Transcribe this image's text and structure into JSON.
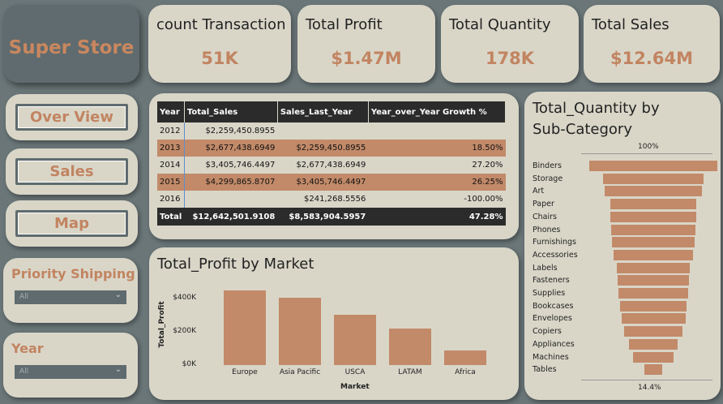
{
  "app": {
    "title": "Super Store"
  },
  "kpis": [
    {
      "label": "count Transaction",
      "value": "51K"
    },
    {
      "label": "Total Profit",
      "value": "$1.47M"
    },
    {
      "label": "Total Quantity",
      "value": "178K"
    },
    {
      "label": "Total Sales",
      "value": "$12.64M"
    }
  ],
  "nav": {
    "overview": "Over View",
    "sales": "Sales",
    "map": "Map"
  },
  "filters": {
    "priority": {
      "label": "Priority Shipping",
      "selected": "All"
    },
    "year": {
      "label": "Year",
      "selected": "All"
    }
  },
  "table": {
    "headers": [
      "Year",
      "Total_Sales",
      "Sales_Last_Year",
      "Year_over_Year Growth %"
    ],
    "rows": [
      [
        "2012",
        "$2,259,450.8955",
        "",
        ""
      ],
      [
        "2013",
        "$2,677,438.6949",
        "$2,259,450.8955",
        "18.50%"
      ],
      [
        "2014",
        "$3,405,746.4497",
        "$2,677,438.6949",
        "27.20%"
      ],
      [
        "2015",
        "$4,299,865.8707",
        "$3,405,746.4497",
        "26.25%"
      ],
      [
        "2016",
        "",
        "$241,268.5556",
        "-100.00%"
      ]
    ],
    "total": [
      "Total",
      "$12,642,501.9108",
      "$8,583,904.5957",
      "47.28%"
    ]
  },
  "colors": {
    "accent": "#c28a69",
    "panel": "#d9d6c8",
    "background": "#6a7678",
    "dark": "#2b2b2b"
  },
  "chart_data": [
    {
      "type": "bar",
      "title": "Total_Profit by Market",
      "xlabel": "Market",
      "ylabel": "Total_Profit",
      "categories": [
        "Europe",
        "Asia Pacific",
        "USCA",
        "LATAM",
        "Africa"
      ],
      "values": [
        450000,
        405000,
        305000,
        222000,
        90000
      ],
      "ylim": [
        0,
        450000
      ],
      "yticks": [
        0,
        200000,
        400000
      ],
      "ytick_labels": [
        "$0K",
        "$200K",
        "$400K"
      ]
    },
    {
      "type": "bar",
      "orientation": "horizontal-funnel",
      "title": "Total_Quantity by Sub-Category",
      "top_label": "100%",
      "bottom_label": "14.4%",
      "categories": [
        "Binders",
        "Storage",
        "Art",
        "Paper",
        "Chairs",
        "Phones",
        "Furnishings",
        "Accessories",
        "Labels",
        "Fasteners",
        "Supplies",
        "Bookcases",
        "Envelopes",
        "Copiers",
        "Appliances",
        "Machines",
        "Tables"
      ],
      "values": [
        100,
        79,
        76,
        67,
        67,
        66,
        64,
        62,
        57,
        56,
        54,
        52,
        50,
        45,
        38,
        32,
        14.4
      ]
    }
  ]
}
